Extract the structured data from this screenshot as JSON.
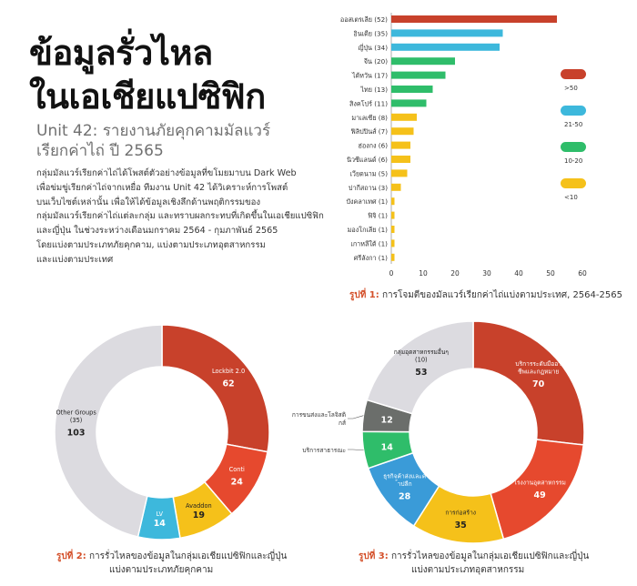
{
  "header": {
    "title_line1": "ข้อมูลรั่วไหล",
    "title_line2": "ในเอเชียแปซิฟิก",
    "subtitle_line1": "Unit 42: รายงานภัยคุกคามมัลแวร์",
    "subtitle_line2": "เรียกค่าไถ่ ปี 2565",
    "intro_lines": [
      "กลุ่มมัลแวร์เรียกค่าไถ่ได้โพสต์ตัวอย่างข้อมูลที่ขโมยมาบน Dark Web",
      "เพื่อข่มขู่เรียกค่าไถ่จากเหยื่อ ทีมงาน Unit 42 ได้วิเคราะห์การโพสต์",
      "บนเว็บไซต์เหล่านั้น เพื่อให้ได้ข้อมูลเชิงลึกด้านพฤติกรรมของ",
      "กลุ่มมัลแวร์เรียกค่าไถ่แต่ละกลุ่ม และทราบผลกระทบที่เกิดขึ้นในเอเชียแปซิฟิก",
      "และญี่ปุ่น ในช่วงระหว่างเดือนมกราคม 2564 - กุมภาพันธ์ 2565",
      "โดยแบ่งตามประเภทภัยคุกคาม, แบ่งตามประเภทอุตสาหกรรม",
      "และแบ่งตามประเทศ"
    ]
  },
  "colors": {
    "red": "#c8412b",
    "cyan": "#3db8dc",
    "green": "#2fbd6a",
    "yellow": "#f5c11a",
    "orange_red": "#e6492e",
    "blue": "#3a9bd8",
    "gray_dark": "#6b6e6b",
    "gray_light": "#dcdbe0"
  },
  "chart_data": [
    {
      "type": "bar",
      "orientation": "horizontal",
      "categories": [
        "ออสเตรเลีย (52)",
        "อินเดีย (35)",
        "ญี่ปุ่น (34)",
        "จีน (20)",
        "ไต้หวัน (17)",
        "ไทย (13)",
        "สิงคโปร์ (11)",
        "มาเลเซีย (8)",
        "ฟิลิปปินส์ (7)",
        "ฮ่องกง (6)",
        "นิวซีแลนด์ (6)",
        "เวียดนาม (5)",
        "ปากีสถาน (3)",
        "บังคลาเทศ (1)",
        "ฟิจิ (1)",
        "มองโกเลีย (1)",
        "เกาหลีใต้ (1)",
        "ศรีลังกา (1)"
      ],
      "values": [
        52,
        35,
        34,
        20,
        17,
        13,
        11,
        8,
        7,
        6,
        6,
        5,
        3,
        1,
        1,
        1,
        1,
        1
      ],
      "xlim": [
        0,
        60
      ],
      "xticks": [
        "0",
        "10",
        "20",
        "30",
        "40",
        "50",
        "60"
      ],
      "legend": [
        {
          "label": ">50",
          "color": "#c8412b"
        },
        {
          "label": "21-50",
          "color": "#3db8dc"
        },
        {
          "label": "10-20",
          "color": "#2fbd6a"
        },
        {
          "label": "<10",
          "color": "#f5c11a"
        }
      ],
      "legend_position": "right",
      "caption_num": "รูปที่ 1:",
      "caption_text": "การโจมตีของมัลแวร์เรียกค่าไถ่แบ่งตามประเทศ, 2564-2565"
    },
    {
      "type": "pie",
      "donut": true,
      "slices": [
        {
          "label": "Lockbit 2.0",
          "value": 62,
          "value_text": "62",
          "color": "#c8412b"
        },
        {
          "label": "Conti",
          "value": 24,
          "value_text": "24",
          "color": "#e6492e"
        },
        {
          "label": "Avaddon",
          "value": 19,
          "value_text": "19",
          "color": "#f5c11a"
        },
        {
          "label": "LV",
          "value": 14,
          "value_text": "14",
          "color": "#3db8dc"
        },
        {
          "label": "Other Groups (35)",
          "value": 103,
          "value_text": "103",
          "color": "#dcdbe0"
        }
      ],
      "caption_num": "รูปที่ 2:",
      "caption_line1": "การรั่วไหลของข้อมูลในกลุ่มเอเชียแปซิฟิกและญี่ปุ่น",
      "caption_line2": "แบ่งตามประเภทภัยคุกคาม"
    },
    {
      "type": "pie",
      "donut": true,
      "slices": [
        {
          "label": "บริการระดับมืออาชีพและกฎหมาย",
          "value": 70,
          "value_text": "70",
          "color": "#c8412b"
        },
        {
          "label": "โรงงานอุตสาหกรรม",
          "value": 49,
          "value_text": "49",
          "color": "#e6492e"
        },
        {
          "label": "การก่อสร้าง",
          "value": 35,
          "value_text": "35",
          "color": "#f5c11a"
        },
        {
          "label": "ธุรกิจค้าส่งและค้าปลีก",
          "value": 28,
          "value_text": "28",
          "color": "#3a9bd8"
        },
        {
          "label": "บริการสาธารณะ",
          "value": 14,
          "value_text": "14",
          "color": "#2fbd6a"
        },
        {
          "label": "การขนส่งและโลจิสติกส์",
          "value": 12,
          "value_text": "12",
          "color": "#6b6e6b"
        },
        {
          "label": "กลุ่มอุตสาหกรรมอื่นๆ (10)",
          "value": 53,
          "value_text": "53",
          "color": "#dcdbe0"
        }
      ],
      "caption_num": "รูปที่ 3:",
      "caption_line1": "การรั่วไหลของข้อมูลในกลุ่มเอเชียแปซิฟิกและญี่ปุ่น",
      "caption_line2": "แบ่งตามประเภทอุตสาหกรรม"
    }
  ]
}
